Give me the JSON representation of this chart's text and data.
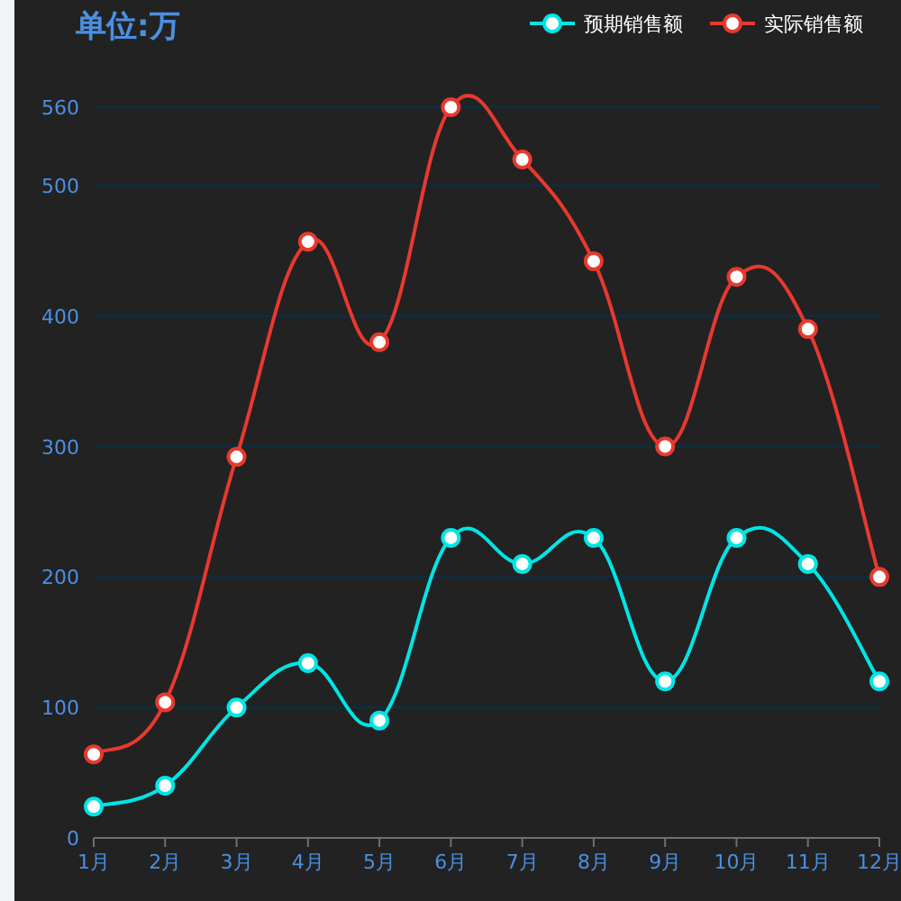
{
  "chart_data": {
    "type": "line",
    "title": "单位:万",
    "categories": [
      "1月",
      "2月",
      "3月",
      "4月",
      "5月",
      "6月",
      "7月",
      "8月",
      "9月",
      "10月",
      "11月",
      "12月"
    ],
    "series": [
      {
        "name": "预期销售额",
        "color": "#00e5e5",
        "values": [
          24,
          40,
          100,
          134,
          90,
          230,
          210,
          230,
          120,
          230,
          210,
          120
        ]
      },
      {
        "name": "实际销售额",
        "color": "#e8392f",
        "values": [
          64,
          104,
          292,
          457,
          380,
          560,
          520,
          442,
          300,
          430,
          390,
          200
        ]
      }
    ],
    "ylim": [
      0,
      560
    ],
    "yticks": [
      0,
      100,
      200,
      300,
      400,
      500,
      560
    ],
    "grid": "y",
    "legend": "top right",
    "marker": "circle",
    "line_style": "solid"
  }
}
